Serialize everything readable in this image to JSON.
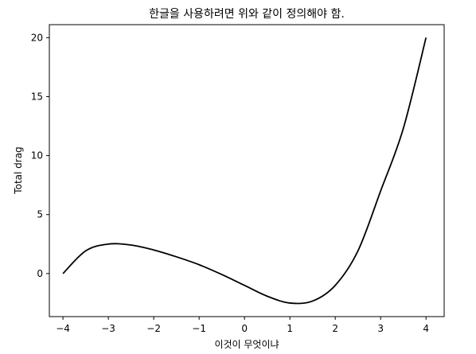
{
  "chart_data": {
    "type": "line",
    "title": "한글을 사용하려면 위와 같이 정의해야 함.",
    "xlabel": "이것이 무엇이냐",
    "ylabel": "Total drag",
    "xlim": [
      -4.3,
      4.4
    ],
    "ylim": [
      -3.65,
      21.1
    ],
    "x_ticks": [
      -4,
      -3,
      -2,
      -1,
      0,
      1,
      2,
      3,
      4
    ],
    "x_tick_labels": [
      "−4",
      "−3",
      "−2",
      "−1",
      "0",
      "1",
      "2",
      "3",
      "4"
    ],
    "y_ticks": [
      0,
      5,
      10,
      15,
      20
    ],
    "y_tick_labels": [
      "0",
      "5",
      "10",
      "15",
      "20"
    ],
    "grid": false,
    "series": [
      {
        "x": [
          -4.0,
          -3.5,
          -3.0,
          -2.5,
          -2.0,
          -1.5,
          -1.0,
          -0.5,
          0.0,
          0.5,
          1.0,
          1.5,
          2.0,
          2.5,
          3.0,
          3.5,
          4.0
        ],
        "y": [
          0.0,
          1.92,
          2.5,
          2.42,
          2.0,
          1.42,
          0.75,
          -0.08,
          -1.0,
          -1.92,
          -2.5,
          -2.33,
          -1.0,
          1.92,
          7.0,
          12.3,
          20.0
        ],
        "color": "#000000"
      }
    ]
  }
}
